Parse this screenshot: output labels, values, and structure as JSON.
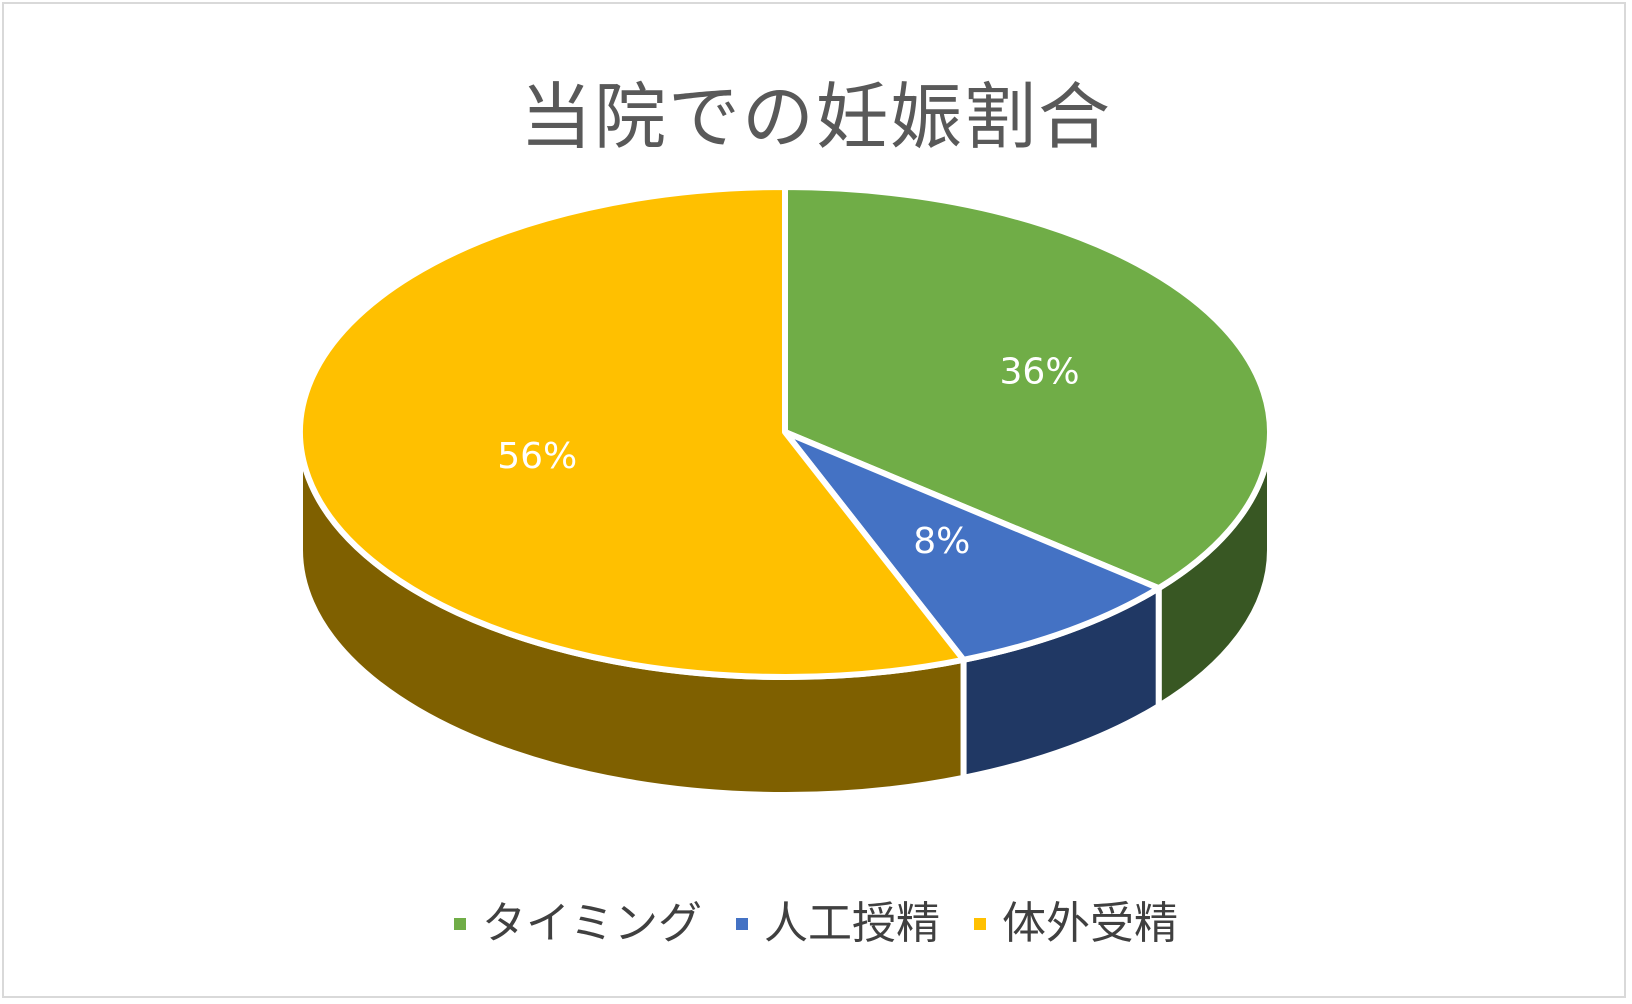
{
  "chart_data": {
    "type": "pie",
    "title": "当院での妊娠割合",
    "style": "3d",
    "categories": [
      "タイミング",
      "人工授精",
      "体外受精"
    ],
    "values": [
      36,
      8,
      56
    ],
    "unit": "%",
    "data_labels": [
      "36%",
      "8%",
      "56%"
    ],
    "colors": [
      "#70ad47",
      "#4472c4",
      "#ffc000"
    ],
    "side_colors": [
      "#385723",
      "#203864",
      "#7f6000"
    ],
    "legend": {
      "position": "bottom",
      "entries": [
        "タイミング",
        "人工授精",
        "体外受精"
      ]
    }
  }
}
